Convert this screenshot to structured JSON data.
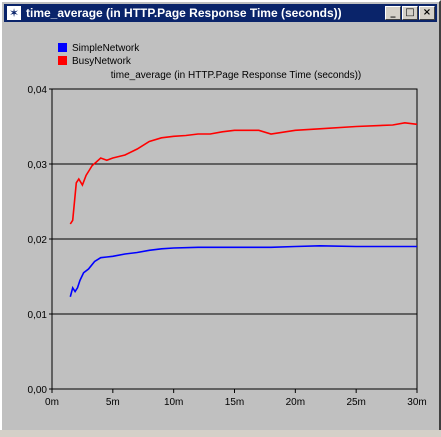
{
  "window": {
    "title": "time_average (in HTTP.Page Response Time (seconds))",
    "icon": "star-icon",
    "buttons": {
      "minimize": "_",
      "maximize": "□",
      "close": "×"
    }
  },
  "chart_data": {
    "type": "line",
    "title": "time_average (in HTTP.Page Response Time (seconds))",
    "xlabel": "",
    "ylabel": "",
    "xlim": [
      0,
      30
    ],
    "ylim": [
      0,
      0.04
    ],
    "x_ticks": [
      0,
      5,
      10,
      15,
      20,
      25,
      30
    ],
    "x_tick_labels": [
      "0m",
      "5m",
      "10m",
      "15m",
      "20m",
      "25m",
      "30m"
    ],
    "y_ticks": [
      0,
      0.01,
      0.02,
      0.03,
      0.04
    ],
    "y_tick_labels": [
      "0,00",
      "0,01",
      "0,02",
      "0,03",
      "0,04"
    ],
    "grid": "horizontal",
    "legend_position": "top-left",
    "background": "#c0c0c0",
    "series": [
      {
        "name": "SimpleNetwork",
        "color": "#0000ff",
        "x": [
          1.5,
          1.7,
          1.9,
          2.1,
          2.3,
          2.6,
          3.0,
          3.5,
          4.0,
          4.5,
          5.0,
          6.0,
          7.0,
          8.0,
          9.0,
          10.0,
          12.0,
          15.0,
          18.0,
          20.0,
          22.0,
          25.0,
          28.0,
          30.0
        ],
        "values": [
          0.0123,
          0.0135,
          0.013,
          0.0135,
          0.0145,
          0.0155,
          0.016,
          0.017,
          0.0175,
          0.0176,
          0.0177,
          0.018,
          0.0182,
          0.0185,
          0.0187,
          0.0188,
          0.0189,
          0.0189,
          0.0189,
          0.019,
          0.0191,
          0.019,
          0.019,
          0.019
        ]
      },
      {
        "name": "BusyNetwork",
        "color": "#ff0000",
        "x": [
          1.5,
          1.7,
          2.0,
          2.2,
          2.5,
          2.8,
          3.0,
          3.3,
          3.6,
          4.0,
          4.5,
          5.0,
          5.5,
          6.0,
          7.0,
          8.0,
          9.0,
          10.0,
          11.0,
          12.0,
          13.0,
          14.0,
          15.0,
          16.0,
          17.0,
          18.0,
          20.0,
          22.0,
          25.0,
          28.0,
          29.0,
          30.0
        ],
        "values": [
          0.022,
          0.0225,
          0.0275,
          0.028,
          0.0272,
          0.0285,
          0.029,
          0.0298,
          0.0302,
          0.0308,
          0.0305,
          0.0308,
          0.031,
          0.0312,
          0.032,
          0.033,
          0.0335,
          0.0337,
          0.0338,
          0.034,
          0.034,
          0.0343,
          0.0345,
          0.0345,
          0.0345,
          0.034,
          0.0345,
          0.0347,
          0.035,
          0.0352,
          0.0355,
          0.0353
        ]
      }
    ]
  }
}
